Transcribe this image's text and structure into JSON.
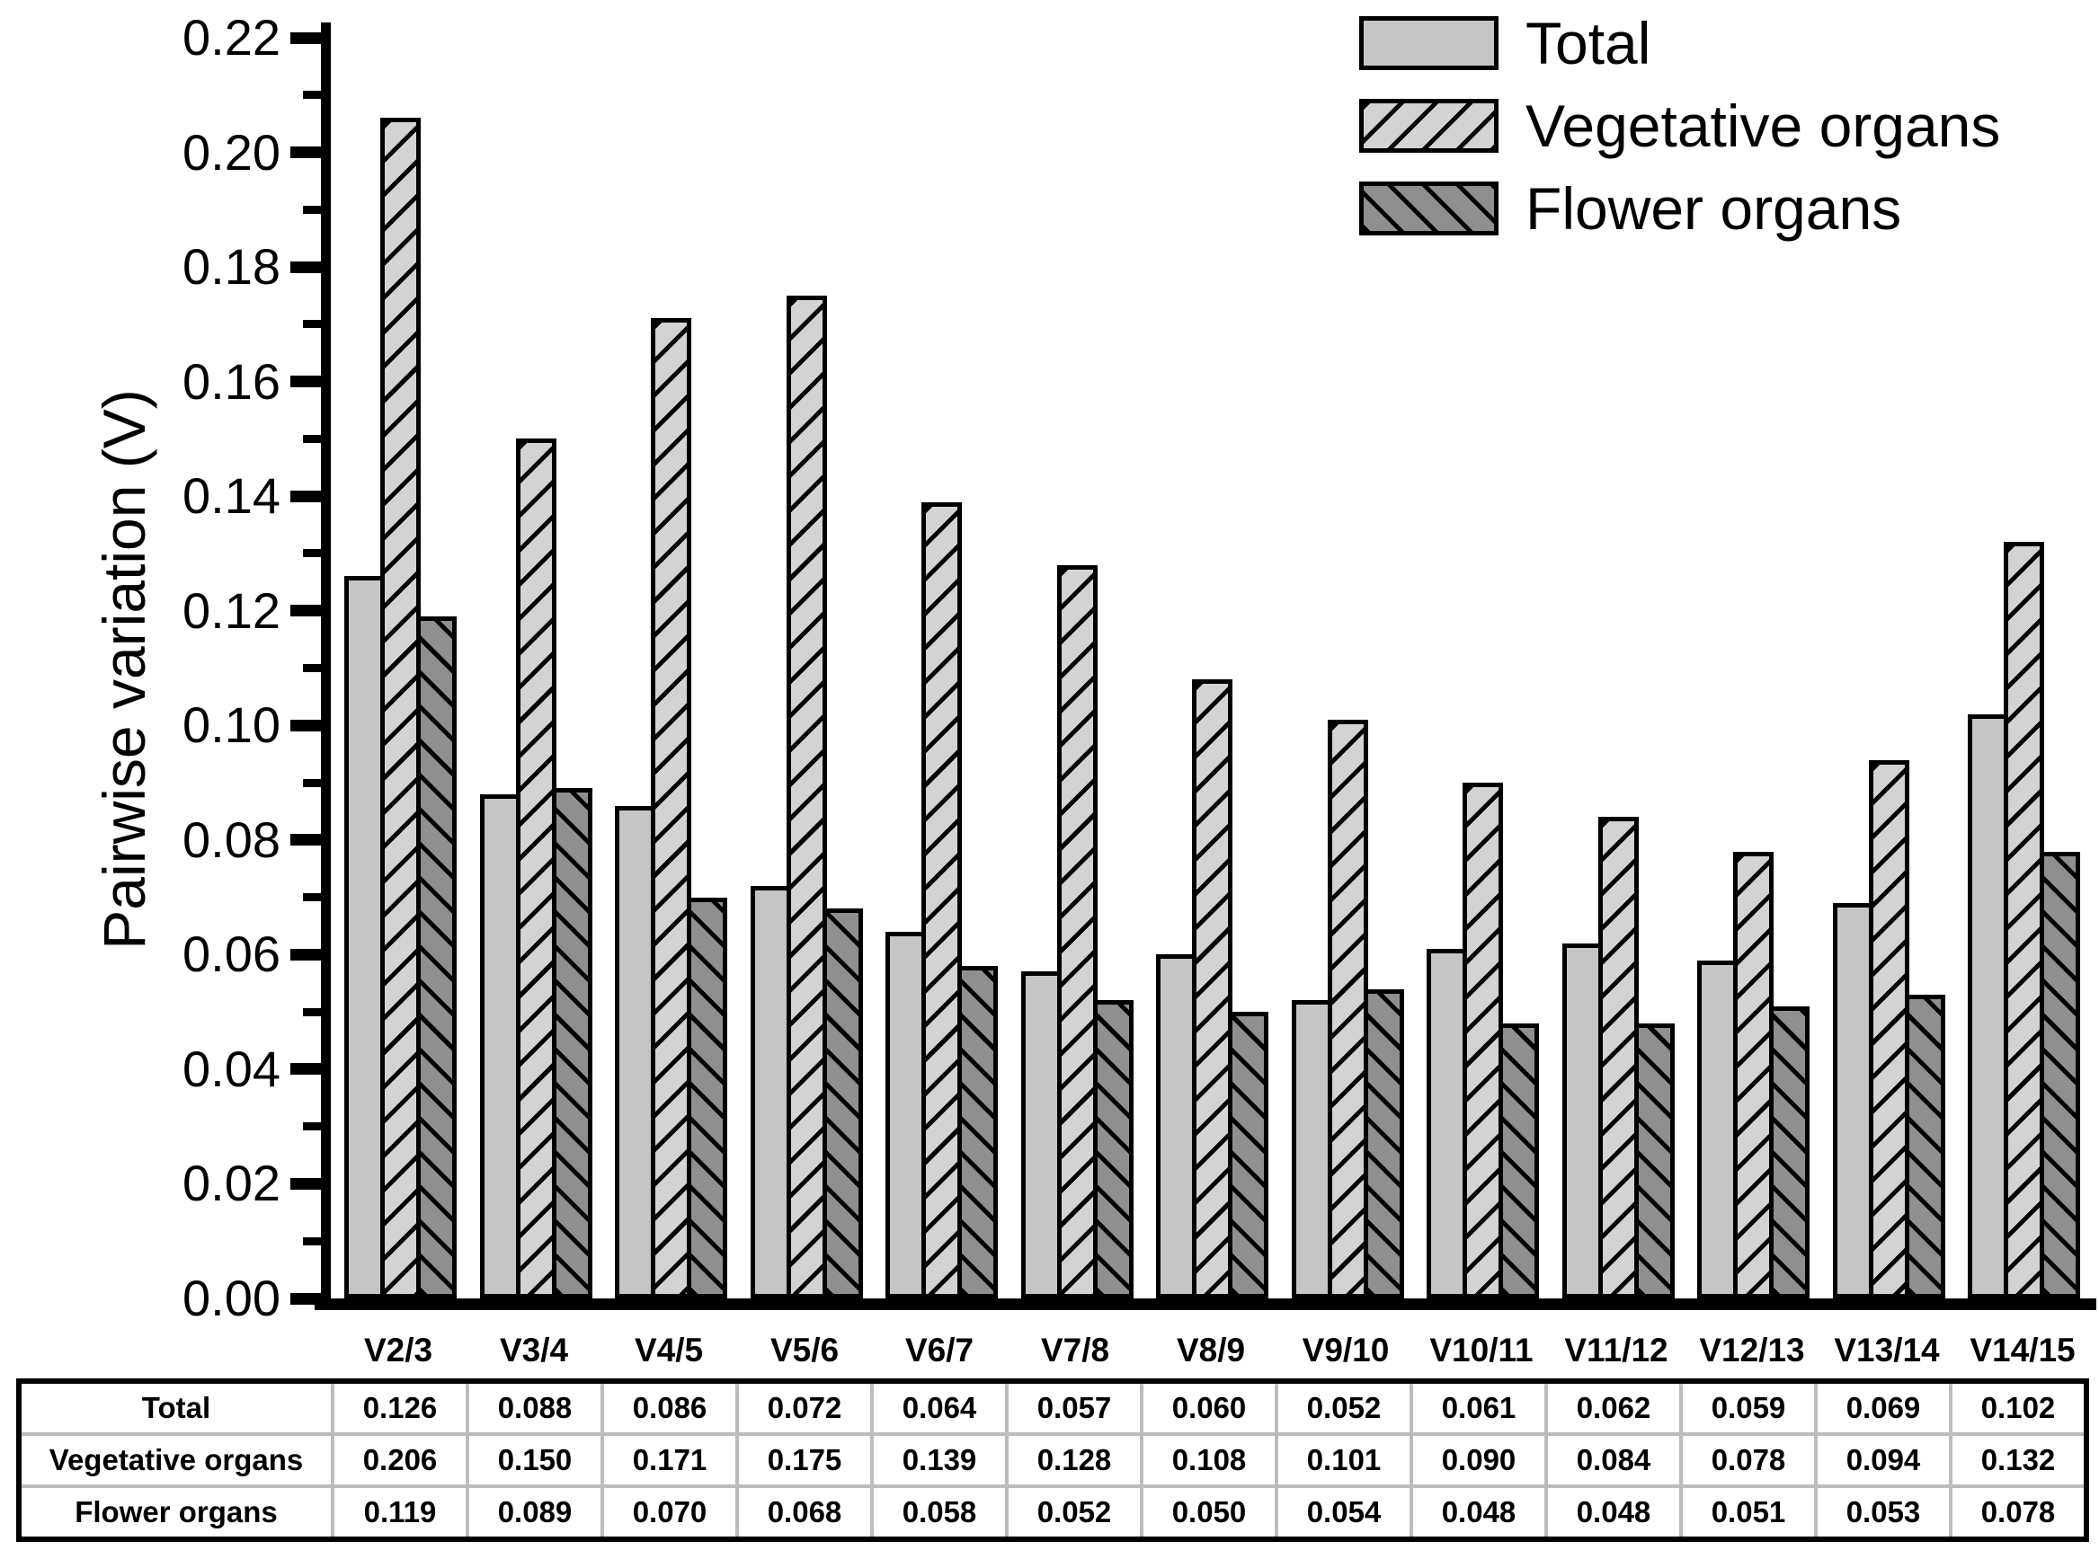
{
  "figure": {
    "background": "#ffffff",
    "y_axis_title": "Pairwise variation (V)"
  },
  "chart_data": {
    "type": "bar",
    "title": "",
    "xlabel": "",
    "ylabel": "Pairwise variation (V)",
    "ylim": [
      0,
      0.22
    ],
    "ytick_step": 0.02,
    "minor_tick_step": 0.01,
    "ytick_labels": [
      "0.00",
      "0.02",
      "0.04",
      "0.06",
      "0.08",
      "0.10",
      "0.12",
      "0.14",
      "0.16",
      "0.18",
      "0.20",
      "0.22"
    ],
    "grid": false,
    "legend_position": "top-right",
    "categories": [
      "V2/3",
      "V3/4",
      "V4/5",
      "V5/6",
      "V6/7",
      "V7/8",
      "V8/9",
      "V9/10",
      "V10/11",
      "V11/12",
      "V12/13",
      "V13/14",
      "V14/15"
    ],
    "series": [
      {
        "name": "Total",
        "pattern": "solid",
        "fill": "#c5c5c5",
        "hatch_color": "#000000",
        "values": [
          0.126,
          0.088,
          0.086,
          0.072,
          0.064,
          0.057,
          0.06,
          0.052,
          0.061,
          0.062,
          0.059,
          0.069,
          0.102
        ]
      },
      {
        "name": "Vegetative organs",
        "pattern": "diagonal-up",
        "fill": "#d3d3d3",
        "hatch_color": "#000000",
        "values": [
          0.206,
          0.15,
          0.171,
          0.175,
          0.139,
          0.128,
          0.108,
          0.101,
          0.09,
          0.084,
          0.078,
          0.094,
          0.132
        ]
      },
      {
        "name": "Flower organs",
        "pattern": "diagonal-down",
        "fill": "#8f8f8f",
        "hatch_color": "#000000",
        "values": [
          0.119,
          0.089,
          0.07,
          0.068,
          0.058,
          0.052,
          0.05,
          0.054,
          0.048,
          0.048,
          0.051,
          0.053,
          0.078
        ]
      }
    ]
  },
  "legend": {
    "items": [
      {
        "label": "Total"
      },
      {
        "label": "Vegetative organs"
      },
      {
        "label": "Flower organs"
      }
    ]
  },
  "table": {
    "row_labels": [
      "Total",
      "Vegetative organs",
      "Flower organs"
    ],
    "columns": [
      "V2/3",
      "V3/4",
      "V4/5",
      "V5/6",
      "V6/7",
      "V7/8",
      "V8/9",
      "V9/10",
      "V10/11",
      "V11/12",
      "V12/13",
      "V13/14",
      "V14/15"
    ],
    "rows": [
      [
        "0.126",
        "0.088",
        "0.086",
        "0.072",
        "0.064",
        "0.057",
        "0.060",
        "0.052",
        "0.061",
        "0.062",
        "0.059",
        "0.069",
        "0.102"
      ],
      [
        "0.206",
        "0.150",
        "0.171",
        "0.175",
        "0.139",
        "0.128",
        "0.108",
        "0.101",
        "0.090",
        "0.084",
        "0.078",
        "0.094",
        "0.132"
      ],
      [
        "0.119",
        "0.089",
        "0.070",
        "0.068",
        "0.058",
        "0.052",
        "0.050",
        "0.054",
        "0.048",
        "0.048",
        "0.051",
        "0.053",
        "0.078"
      ]
    ]
  }
}
